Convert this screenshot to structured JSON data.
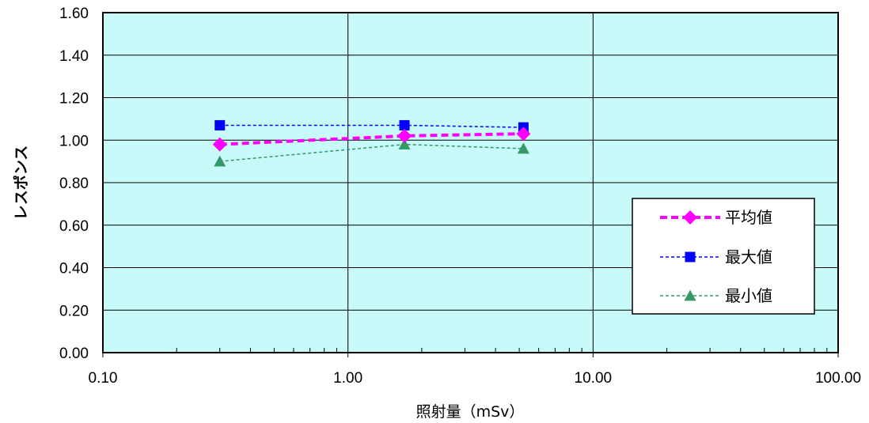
{
  "chart_data": {
    "type": "line",
    "xscale": "log",
    "xlim": [
      0.1,
      100
    ],
    "ylim": [
      0,
      1.6
    ],
    "xlabel": "照射量（mSv）",
    "ylabel": "レスポンス",
    "grid": true,
    "legend_position": "right",
    "plot_background": "#c8fafa",
    "x_ticks": [
      "0.10",
      "1.00",
      "10.00",
      "100.00"
    ],
    "y_ticks": [
      "0.00",
      "0.20",
      "0.40",
      "0.60",
      "0.80",
      "1.00",
      "1.20",
      "1.40",
      "1.60"
    ],
    "x": [
      0.3,
      1.7,
      5.2
    ],
    "series": [
      {
        "name": "平均値",
        "values": [
          0.98,
          1.02,
          1.03
        ],
        "color": "#ff00ff",
        "marker": "diamond",
        "dash": "heavy"
      },
      {
        "name": "最大値",
        "values": [
          1.07,
          1.07,
          1.06
        ],
        "color": "#0000ff",
        "marker": "square",
        "dash": "fine"
      },
      {
        "name": "最小値",
        "values": [
          0.9,
          0.98,
          0.96
        ],
        "color": "#339966",
        "marker": "triangle",
        "dash": "fine"
      }
    ]
  }
}
